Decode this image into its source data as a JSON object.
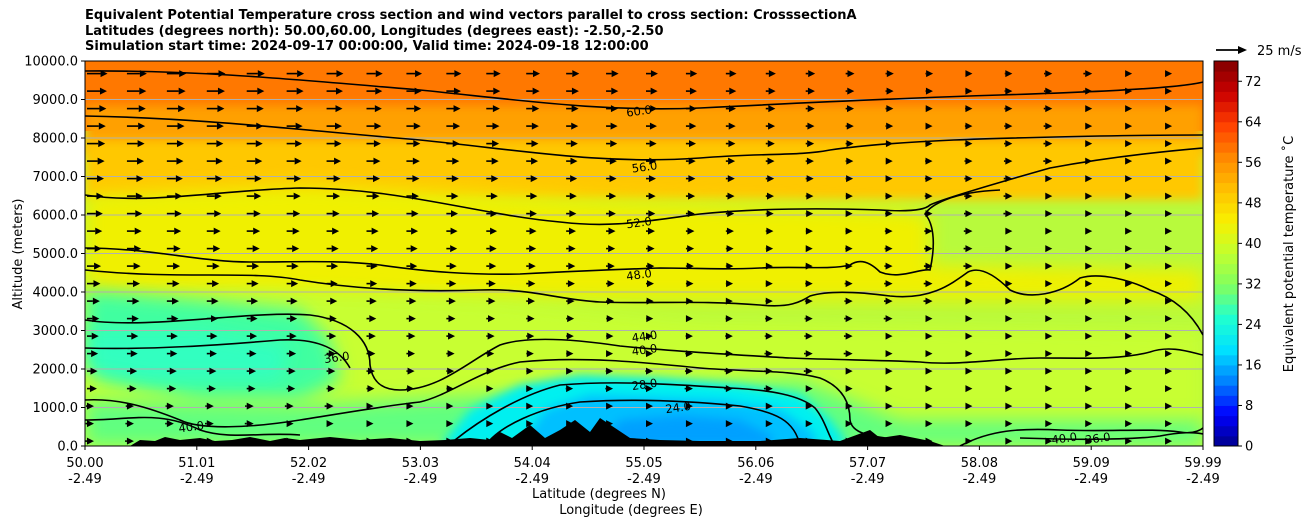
{
  "chart_data": {
    "type": "contour-cross-section",
    "title": {
      "line1": "Equivalent Potential Temperature cross section and wind vectors parallel to cross section: CrosssectionA",
      "line2": "Latitudes (degrees north): 50.00,60.00, Longitudes (degrees east): -2.50,-2.50",
      "line3": "Simulation start time: 2024-09-17 00:00:00, Valid time: 2024-09-18 12:00:00"
    },
    "xlabel_lat": "Latitude (degrees N)",
    "xlabel_lon": "Longitude (degrees E)",
    "ylabel": "Altitude (meters)",
    "x_ticks": [
      {
        "lat": "50.00",
        "lon": "-2.49"
      },
      {
        "lat": "51.01",
        "lon": "-2.49"
      },
      {
        "lat": "52.02",
        "lon": "-2.49"
      },
      {
        "lat": "53.03",
        "lon": "-2.49"
      },
      {
        "lat": "54.04",
        "lon": "-2.49"
      },
      {
        "lat": "55.05",
        "lon": "-2.49"
      },
      {
        "lat": "56.06",
        "lon": "-2.49"
      },
      {
        "lat": "57.07",
        "lon": "-2.49"
      },
      {
        "lat": "58.08",
        "lon": "-2.49"
      },
      {
        "lat": "59.09",
        "lon": "-2.49"
      },
      {
        "lat": "59.99",
        "lon": "-2.49"
      }
    ],
    "xlim": [
      50.0,
      59.99
    ],
    "ylim": [
      0,
      10000
    ],
    "y_ticks": [
      "0.0",
      "1000.0",
      "2000.0",
      "3000.0",
      "4000.0",
      "5000.0",
      "6000.0",
      "7000.0",
      "8000.0",
      "9000.0",
      "10000.0"
    ],
    "y_tick_values": [
      0,
      1000,
      2000,
      3000,
      4000,
      5000,
      6000,
      7000,
      8000,
      9000,
      10000
    ],
    "colorbar": {
      "label": "Equivalent potential temperature ˚C",
      "min": 0,
      "max": 76,
      "step": 2,
      "ticks": [
        "0",
        "8",
        "16",
        "24",
        "32",
        "40",
        "48",
        "56",
        "64",
        "72"
      ],
      "tick_values": [
        0,
        8,
        16,
        24,
        32,
        40,
        48,
        56,
        64,
        72
      ]
    },
    "quiver_key": {
      "label": "25 m/s",
      "speed": 25
    },
    "contour_levels": [
      {
        "value": 60,
        "label": "60.0",
        "lat": 54.95,
        "alt": 8700
      },
      {
        "value": 56,
        "label": "56.0",
        "lat": 55.0,
        "alt": 7250
      },
      {
        "value": 52,
        "label": "52.0",
        "lat": 54.95,
        "alt": 5800
      },
      {
        "value": 48,
        "label": "48.0",
        "lat": 54.95,
        "alt": 4450
      },
      {
        "value": 44,
        "label": "44.0",
        "lat": 55.0,
        "alt": 2850
      },
      {
        "value": 40,
        "label": "40.0",
        "lat": 55.0,
        "alt": 2500
      },
      {
        "value": 36,
        "label": "36.0",
        "lat": 52.25,
        "alt": 2300
      },
      {
        "value": 28,
        "label": "28.0",
        "lat": 55.0,
        "alt": 1600
      },
      {
        "value": 24,
        "label": "24.0",
        "lat": 55.3,
        "alt": 1000
      },
      {
        "value": 40,
        "label": "40.0",
        "lat": 50.95,
        "alt": 500
      },
      {
        "value": 40,
        "label": "40.0",
        "lat": 58.75,
        "alt": 200
      },
      {
        "value": 36,
        "label": "36.0",
        "lat": 59.05,
        "alt": 200
      }
    ],
    "colors": {
      "colormap": [
        "#00008b",
        "#0000ff",
        "#0080ff",
        "#00e0ff",
        "#20ffd0",
        "#80ff60",
        "#c0ff30",
        "#f8f000",
        "#ffc000",
        "#ff8800",
        "#ff4000",
        "#cc0000",
        "#800000"
      ],
      "terrain": "#000000",
      "contour": "#000000",
      "grid": "#b0b0b0"
    }
  }
}
